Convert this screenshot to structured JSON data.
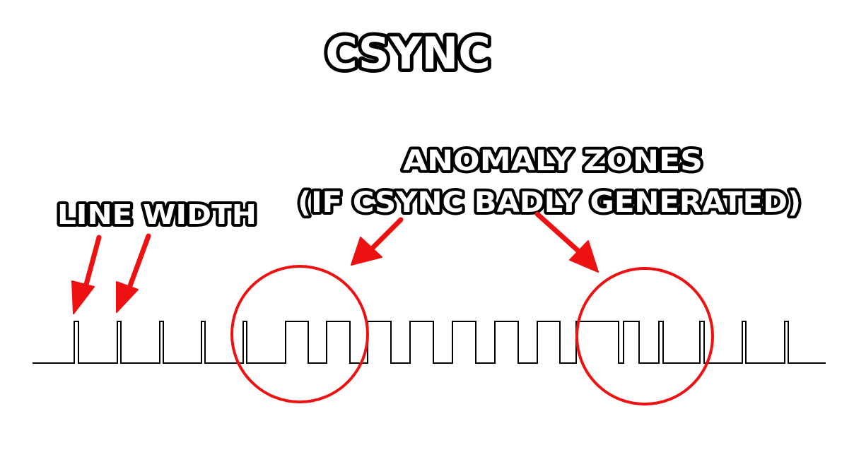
{
  "title": "CSYNC",
  "labels": {
    "line_width": "LINE WIDTH",
    "anomaly_line1": "ANOMALY ZONES",
    "anomaly_line2": "(IF CSYNC BADLY GENERATED)"
  },
  "colors": {
    "background": "#ffffff",
    "signal": "#000000",
    "annotation": "#ee1111",
    "label_fill": "#ffffff",
    "label_outline": "#000000"
  },
  "icons": [
    "arrow-icon",
    "circle-highlight"
  ]
}
